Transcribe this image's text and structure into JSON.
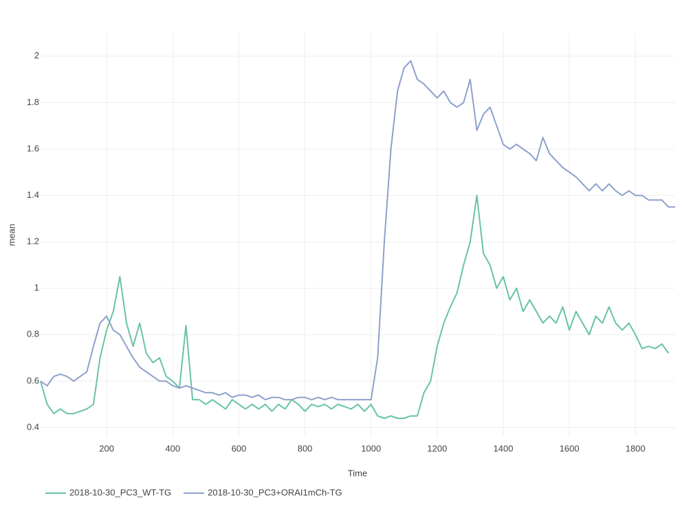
{
  "chart_data": {
    "type": "line",
    "x_label": "Time",
    "y_label": "mean",
    "xlim": [
      0,
      1920
    ],
    "ylim": [
      0.36,
      2.1
    ],
    "xticks": [
      200,
      400,
      600,
      800,
      1000,
      1200,
      1400,
      1600,
      1800
    ],
    "yticks": [
      0.4,
      0.6,
      0.8,
      1,
      1.2,
      1.4,
      1.6,
      1.8,
      2
    ],
    "grid": true,
    "series": [
      {
        "name": "2018-10-30_PC3_WT-TG",
        "color": "#66c2a5",
        "x": [
          0,
          20,
          40,
          60,
          80,
          100,
          120,
          140,
          160,
          180,
          200,
          220,
          240,
          260,
          280,
          300,
          320,
          340,
          360,
          380,
          400,
          420,
          440,
          460,
          480,
          500,
          520,
          540,
          560,
          580,
          600,
          620,
          640,
          660,
          680,
          700,
          720,
          740,
          760,
          780,
          800,
          820,
          840,
          860,
          880,
          900,
          920,
          940,
          960,
          980,
          1000,
          1020,
          1040,
          1060,
          1080,
          1100,
          1120,
          1140,
          1160,
          1180,
          1200,
          1220,
          1240,
          1260,
          1280,
          1300,
          1320,
          1340,
          1360,
          1380,
          1400,
          1420,
          1440,
          1460,
          1480,
          1500,
          1520,
          1540,
          1560,
          1580,
          1600,
          1620,
          1640,
          1660,
          1680,
          1700,
          1720,
          1740,
          1760,
          1780,
          1800,
          1820,
          1840,
          1860,
          1880,
          1900
        ],
        "values": [
          0.6,
          0.5,
          0.46,
          0.48,
          0.46,
          0.46,
          0.47,
          0.48,
          0.5,
          0.7,
          0.82,
          0.9,
          1.05,
          0.85,
          0.75,
          0.85,
          0.72,
          0.68,
          0.7,
          0.62,
          0.6,
          0.57,
          0.84,
          0.52,
          0.52,
          0.5,
          0.52,
          0.5,
          0.48,
          0.52,
          0.5,
          0.48,
          0.5,
          0.48,
          0.5,
          0.47,
          0.5,
          0.48,
          0.52,
          0.5,
          0.47,
          0.5,
          0.49,
          0.5,
          0.48,
          0.5,
          0.49,
          0.48,
          0.5,
          0.47,
          0.5,
          0.45,
          0.44,
          0.45,
          0.44,
          0.44,
          0.45,
          0.45,
          0.55,
          0.6,
          0.75,
          0.85,
          0.92,
          0.98,
          1.1,
          1.2,
          1.4,
          1.15,
          1.1,
          1.0,
          1.05,
          0.95,
          1.0,
          0.9,
          0.95,
          0.9,
          0.85,
          0.88,
          0.85,
          0.92,
          0.82,
          0.9,
          0.85,
          0.8,
          0.88,
          0.85,
          0.92,
          0.85,
          0.82,
          0.85,
          0.8,
          0.74,
          0.75,
          0.74,
          0.76,
          0.72
        ]
      },
      {
        "name": "2018-10-30_PC3+ORAI1mCh-TG",
        "color": "#8da0cb",
        "x": [
          0,
          20,
          40,
          60,
          80,
          100,
          120,
          140,
          160,
          180,
          200,
          220,
          240,
          260,
          280,
          300,
          320,
          340,
          360,
          380,
          400,
          420,
          440,
          460,
          480,
          500,
          520,
          540,
          560,
          580,
          600,
          620,
          640,
          660,
          680,
          700,
          720,
          740,
          760,
          780,
          800,
          820,
          840,
          860,
          880,
          900,
          920,
          940,
          960,
          980,
          1000,
          1020,
          1040,
          1060,
          1080,
          1100,
          1120,
          1140,
          1160,
          1180,
          1200,
          1220,
          1240,
          1260,
          1280,
          1300,
          1320,
          1340,
          1360,
          1380,
          1400,
          1420,
          1440,
          1460,
          1480,
          1500,
          1520,
          1540,
          1560,
          1580,
          1600,
          1620,
          1640,
          1660,
          1680,
          1700,
          1720,
          1740,
          1760,
          1780,
          1800,
          1820,
          1840,
          1860,
          1880,
          1900,
          1920
        ],
        "values": [
          0.6,
          0.58,
          0.62,
          0.63,
          0.62,
          0.6,
          0.62,
          0.64,
          0.75,
          0.85,
          0.88,
          0.82,
          0.8,
          0.75,
          0.7,
          0.66,
          0.64,
          0.62,
          0.6,
          0.6,
          0.58,
          0.57,
          0.58,
          0.57,
          0.56,
          0.55,
          0.55,
          0.54,
          0.55,
          0.53,
          0.54,
          0.54,
          0.53,
          0.54,
          0.52,
          0.53,
          0.53,
          0.52,
          0.52,
          0.53,
          0.53,
          0.52,
          0.53,
          0.52,
          0.53,
          0.52,
          0.52,
          0.52,
          0.52,
          0.52,
          0.52,
          0.7,
          1.2,
          1.6,
          1.85,
          1.95,
          1.98,
          1.9,
          1.88,
          1.85,
          1.82,
          1.85,
          1.8,
          1.78,
          1.8,
          1.9,
          1.68,
          1.75,
          1.78,
          1.7,
          1.62,
          1.6,
          1.62,
          1.6,
          1.58,
          1.55,
          1.65,
          1.58,
          1.55,
          1.52,
          1.5,
          1.48,
          1.45,
          1.42,
          1.45,
          1.42,
          1.45,
          1.42,
          1.4,
          1.42,
          1.4,
          1.4,
          1.38,
          1.38,
          1.38,
          1.35,
          1.35
        ]
      }
    ]
  }
}
